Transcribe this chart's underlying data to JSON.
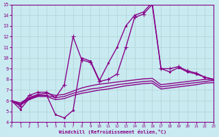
{
  "xlabel": "Windchill (Refroidissement éolien,°C)",
  "background_color": "#c8eaf0",
  "grid_color": "#b0d4d4",
  "line_color": "#880088",
  "xlim": [
    0,
    23
  ],
  "ylim": [
    4,
    15
  ],
  "xticks": [
    0,
    1,
    2,
    3,
    4,
    5,
    6,
    7,
    8,
    9,
    10,
    11,
    12,
    13,
    14,
    15,
    16,
    17,
    18,
    19,
    20,
    21,
    22,
    23
  ],
  "yticks": [
    4,
    5,
    6,
    7,
    8,
    9,
    10,
    11,
    12,
    13,
    14,
    15
  ],
  "series": [
    {
      "x": [
        0,
        1,
        2,
        3,
        4,
        5,
        6,
        7,
        8,
        9,
        10,
        11,
        12,
        13,
        14,
        15,
        16,
        17,
        18,
        19,
        20,
        21,
        22,
        23
      ],
      "y": [
        6.0,
        5.2,
        6.2,
        6.5,
        6.5,
        4.7,
        4.4,
        5.1,
        10.0,
        9.7,
        7.9,
        9.5,
        11.0,
        13.0,
        14.0,
        14.3,
        15.2,
        9.0,
        8.7,
        9.1,
        8.7,
        8.5,
        8.2,
        8.0
      ],
      "marker": ".",
      "markersize": 3,
      "linewidth": 1.0
    },
    {
      "x": [
        0,
        1,
        2,
        3,
        4,
        5,
        6,
        7,
        8,
        9,
        10,
        11,
        12,
        13,
        14,
        15,
        16,
        17,
        18,
        19,
        20,
        21,
        22,
        23
      ],
      "y": [
        6.0,
        5.5,
        6.5,
        6.8,
        6.8,
        6.3,
        7.5,
        12.0,
        9.8,
        9.6,
        7.8,
        8.0,
        8.5,
        11.0,
        13.8,
        14.1,
        15.0,
        9.0,
        9.0,
        9.2,
        8.8,
        8.6,
        8.2,
        8.0
      ],
      "marker": "+",
      "markersize": 4,
      "linewidth": 1.0
    },
    {
      "x": [
        0,
        1,
        2,
        3,
        4,
        5,
        6,
        7,
        8,
        9,
        10,
        11,
        12,
        13,
        14,
        15,
        16,
        17,
        18,
        19,
        20,
        21,
        22,
        23
      ],
      "y": [
        6.0,
        5.8,
        6.3,
        6.6,
        6.7,
        6.5,
        6.6,
        6.9,
        7.2,
        7.4,
        7.55,
        7.65,
        7.75,
        7.85,
        7.95,
        8.05,
        8.1,
        7.5,
        7.6,
        7.7,
        7.8,
        7.9,
        8.0,
        8.0
      ],
      "marker": null,
      "markersize": 0,
      "linewidth": 1.0
    },
    {
      "x": [
        0,
        1,
        2,
        3,
        4,
        5,
        6,
        7,
        8,
        9,
        10,
        11,
        12,
        13,
        14,
        15,
        16,
        17,
        18,
        19,
        20,
        21,
        22,
        23
      ],
      "y": [
        6.0,
        5.7,
        6.2,
        6.5,
        6.5,
        6.3,
        6.4,
        6.7,
        6.9,
        7.1,
        7.2,
        7.35,
        7.5,
        7.6,
        7.7,
        7.8,
        7.85,
        7.3,
        7.4,
        7.5,
        7.6,
        7.7,
        7.8,
        7.9
      ],
      "marker": null,
      "markersize": 0,
      "linewidth": 1.0
    },
    {
      "x": [
        0,
        1,
        2,
        3,
        4,
        5,
        6,
        7,
        8,
        9,
        10,
        11,
        12,
        13,
        14,
        15,
        16,
        17,
        18,
        19,
        20,
        21,
        22,
        23
      ],
      "y": [
        6.0,
        5.6,
        6.1,
        6.4,
        6.4,
        6.1,
        6.2,
        6.5,
        6.7,
        6.85,
        7.0,
        7.1,
        7.25,
        7.4,
        7.5,
        7.6,
        7.65,
        7.1,
        7.2,
        7.3,
        7.4,
        7.5,
        7.65,
        7.7
      ],
      "marker": null,
      "markersize": 0,
      "linewidth": 1.0
    }
  ]
}
